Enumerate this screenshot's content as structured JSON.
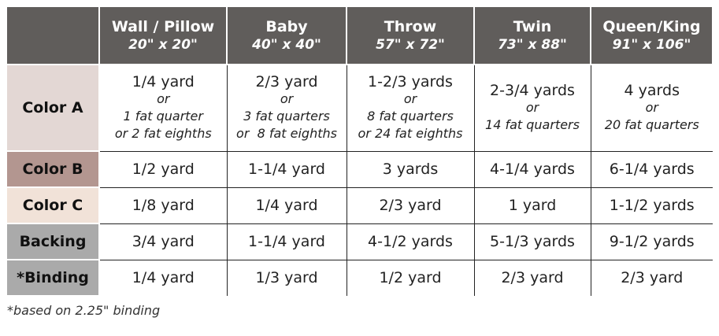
{
  "colors": {
    "header_bg": "#605d5b",
    "color_a": "#e3d7d4",
    "color_b": "#b39690",
    "color_c": "#f1e2d8",
    "backing": "#aaaaaa",
    "binding": "#aaaaaa"
  },
  "columns": [
    {
      "name": "Wall / Pillow",
      "size": "20\" x 20\""
    },
    {
      "name": "Baby",
      "size": "40\" x 40\""
    },
    {
      "name": "Throw",
      "size": "57\" x 72\""
    },
    {
      "name": "Twin",
      "size": "73\" x 88\""
    },
    {
      "name": "Queen/King",
      "size": "91\" x 106\""
    }
  ],
  "rows": [
    {
      "label": "Color A",
      "cells": [
        {
          "main": "1/4 yard",
          "or": "or",
          "alt": [
            "1 fat quarter",
            "or 2 fat eighths"
          ]
        },
        {
          "main": "2/3 yard",
          "or": "or",
          "alt": [
            "3 fat quarters",
            "or  8 fat eighths"
          ]
        },
        {
          "main": "1-2/3 yards",
          "or": "or",
          "alt": [
            "8 fat quarters",
            "or 24 fat eighths"
          ]
        },
        {
          "main": "2-3/4 yards",
          "or": "or",
          "alt": [
            "14 fat quarters"
          ]
        },
        {
          "main": "4 yards",
          "or": "or",
          "alt": [
            "20 fat quarters"
          ]
        }
      ]
    },
    {
      "label": "Color B",
      "cells": [
        "1/2 yard",
        "1-1/4 yard",
        "3 yards",
        "4-1/4 yards",
        "6-1/4 yards"
      ]
    },
    {
      "label": "Color C",
      "cells": [
        "1/8 yard",
        "1/4 yard",
        "2/3 yard",
        "1 yard",
        "1-1/2 yards"
      ]
    },
    {
      "label": "Backing",
      "cells": [
        "3/4 yard",
        "1-1/4 yard",
        "4-1/2 yards",
        "5-1/3 yards",
        "9-1/2 yards"
      ]
    },
    {
      "label": "*Binding",
      "cells": [
        "1/4 yard",
        "1/3 yard",
        "1/2 yard",
        "2/3 yard",
        "2/3 yard"
      ]
    }
  ],
  "footnote": "*based on 2.25\" binding"
}
